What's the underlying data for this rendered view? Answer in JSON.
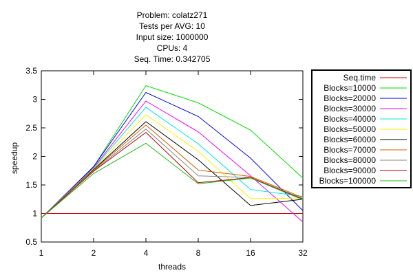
{
  "chart_data": {
    "type": "line",
    "title_lines": [
      "Problem: colatz271",
      "Tests per AVG: 10",
      "Input size: 1000000",
      "CPUs: 4",
      "Seq. Time: 0.342705"
    ],
    "xlabel": "threads",
    "ylabel": "speedup",
    "x": [
      "1",
      "2",
      "4",
      "8",
      "16",
      "32"
    ],
    "y_ticks": [
      "0.5",
      "1",
      "1.5",
      "2",
      "2.5",
      "3",
      "3.5"
    ],
    "ylim": [
      0.5,
      3.5
    ],
    "grid": false,
    "legend_position": "right, outside plot, boxed",
    "series": [
      {
        "name": "Seq.time",
        "color": "#cc0000",
        "values": [
          1,
          1,
          1,
          1,
          1,
          1
        ]
      },
      {
        "name": "Blocks=10000",
        "color": "#00dd00",
        "values": [
          0.92,
          1.82,
          3.24,
          2.94,
          2.46,
          1.62
        ]
      },
      {
        "name": "Blocks=20000",
        "color": "#0000ee",
        "values": [
          0.92,
          1.82,
          3.12,
          2.7,
          1.97,
          1.05
        ]
      },
      {
        "name": "Blocks=30000",
        "color": "#ee00ee",
        "values": [
          0.92,
          1.8,
          2.97,
          2.43,
          1.66,
          0.85
        ]
      },
      {
        "name": "Blocks=40000",
        "color": "#00e8e8",
        "values": [
          0.92,
          1.79,
          2.86,
          2.22,
          1.42,
          1.3
        ]
      },
      {
        "name": "Blocks=50000",
        "color": "#ffee00",
        "values": [
          0.92,
          1.78,
          2.73,
          2.09,
          1.26,
          1.27
        ]
      },
      {
        "name": "Blocks=60000",
        "color": "#000000",
        "values": [
          0.92,
          1.77,
          2.61,
          1.94,
          1.14,
          1.25
        ]
      },
      {
        "name": "Blocks=70000",
        "color": "#d06000",
        "values": [
          0.92,
          1.76,
          2.55,
          1.76,
          1.65,
          1.28
        ]
      },
      {
        "name": "Blocks=80000",
        "color": "#888888",
        "values": [
          0.92,
          1.75,
          2.48,
          1.66,
          1.63,
          1.26
        ]
      },
      {
        "name": "Blocks=90000",
        "color": "#b00000",
        "values": [
          0.92,
          1.74,
          2.42,
          1.54,
          1.63,
          1.25
        ]
      },
      {
        "name": "Blocks=100000",
        "color": "#22bb22",
        "values": [
          0.92,
          1.7,
          2.23,
          1.52,
          1.62,
          1.24
        ]
      }
    ]
  }
}
